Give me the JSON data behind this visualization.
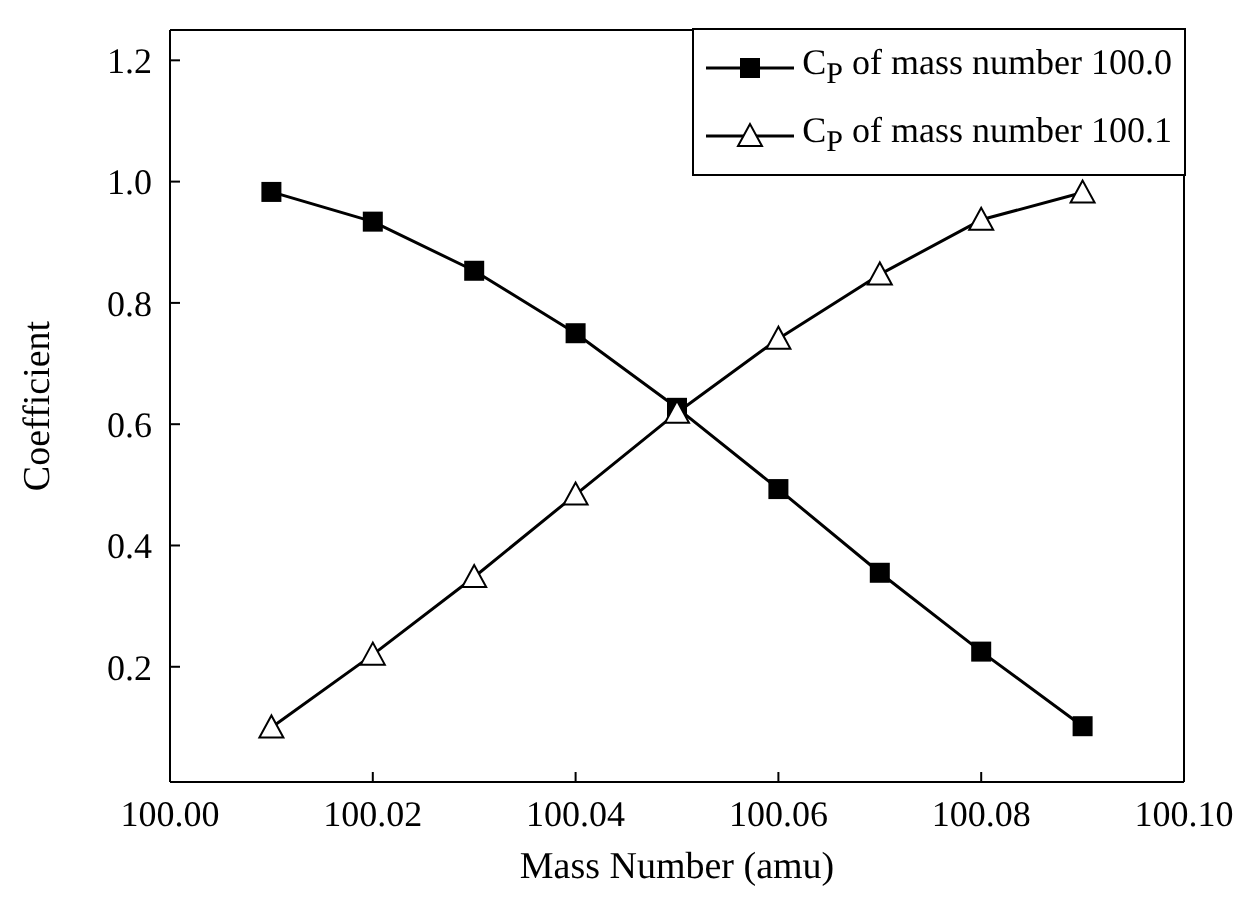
{
  "chart_data": {
    "type": "line",
    "xlabel": "Mass Number (amu)",
    "ylabel": "Coefficient",
    "x": [
      100.01,
      100.02,
      100.03,
      100.04,
      100.05,
      100.06,
      100.07,
      100.08,
      100.09
    ],
    "series": [
      {
        "name": "C$_{P}$ of mass number 100.0",
        "color": "#000000",
        "marker": "square",
        "values": [
          0.983,
          0.934,
          0.853,
          0.75,
          0.627,
          0.493,
          0.355,
          0.225,
          0.102
        ]
      },
      {
        "name": "C$_{P}$ of mass number 100.1",
        "color": "#000000",
        "marker": "triangle",
        "values": [
          0.1,
          0.22,
          0.348,
          0.484,
          0.619,
          0.741,
          0.847,
          0.937,
          0.982
        ]
      }
    ],
    "xlim": [
      100.0,
      100.1
    ],
    "xticks": [
      {
        "value": 100.0,
        "label": "100.00"
      },
      {
        "value": 100.02,
        "label": "100.02"
      },
      {
        "value": 100.04,
        "label": "100.04"
      },
      {
        "value": 100.06,
        "label": "100.06"
      },
      {
        "value": 100.08,
        "label": "100.08"
      },
      {
        "value": 100.1,
        "label": "100.10"
      }
    ],
    "ylim": [
      0.01,
      1.25
    ],
    "yticks": [
      {
        "value": 0.2,
        "label": "0.2"
      },
      {
        "value": 0.4,
        "label": "0.4"
      },
      {
        "value": 0.6,
        "label": "0.6"
      },
      {
        "value": 0.8,
        "label": "0.8"
      },
      {
        "value": 1.0,
        "label": "1.0"
      },
      {
        "value": 1.2,
        "label": "1.2"
      }
    ],
    "legend": "top right",
    "grid": false,
    "line_style": "solid"
  }
}
